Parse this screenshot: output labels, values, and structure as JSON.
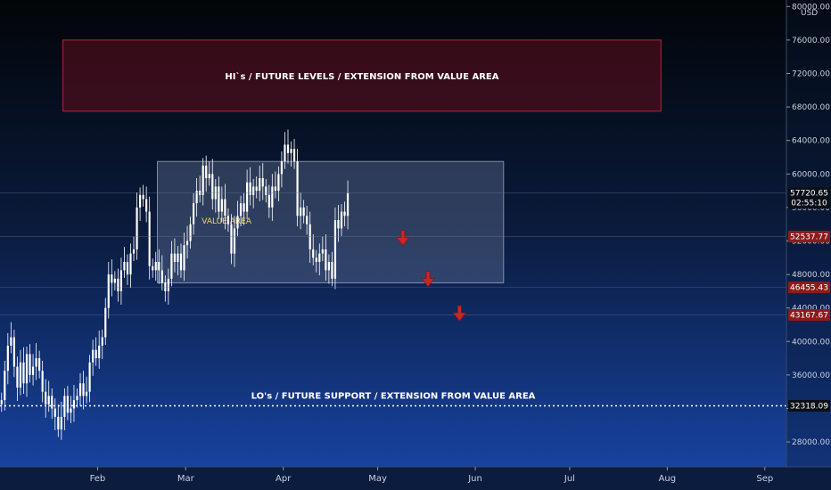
{
  "chart_data": {
    "type": "candlestick",
    "currency": "USD",
    "ylim": [
      24500,
      80000
    ],
    "yticks": [
      28000,
      32000,
      36000,
      40000,
      44000,
      48000,
      52000,
      56000,
      60000,
      64000,
      68000,
      72000,
      76000,
      80000
    ],
    "ytick_labels": [
      "28000.00",
      "32000.00",
      "36000.00",
      "40000.00",
      "44000.00",
      "48000.00",
      "52000.00",
      "56000.00",
      "60000.00",
      "64000.00",
      "68000.00",
      "72000.00",
      "76000.00",
      "80000.00"
    ],
    "x_months": [
      {
        "label": "Feb",
        "day": 31
      },
      {
        "label": "Mar",
        "day": 59
      },
      {
        "label": "Apr",
        "day": 90
      },
      {
        "label": "May",
        "day": 120
      },
      {
        "label": "Jun",
        "day": 151
      },
      {
        "label": "Jul",
        "day": 181
      },
      {
        "label": "Aug",
        "day": 212
      },
      {
        "label": "Sep",
        "day": 243
      }
    ],
    "closes": [
      33000,
      36500,
      39500,
      40500,
      37000,
      34500,
      37500,
      35000,
      38500,
      36000,
      37000,
      38000,
      36500,
      34000,
      32500,
      33500,
      32000,
      31000,
      29500,
      31000,
      33500,
      31500,
      32000,
      33000,
      33500,
      35000,
      33500,
      34000,
      37500,
      39000,
      38000,
      39500,
      40500,
      44000,
      48000,
      47000,
      47500,
      46000,
      48500,
      49500,
      48000,
      50500,
      51000,
      56000,
      57500,
      57000,
      55500,
      49000,
      48500,
      49500,
      48500,
      47000,
      46000,
      47500,
      50500,
      49500,
      50500,
      48500,
      51500,
      52000,
      54000,
      56500,
      58000,
      57500,
      61000,
      59500,
      60000,
      57000,
      58500,
      55500,
      57000,
      55000,
      54000,
      50500,
      53500,
      55000,
      56500,
      55500,
      59000,
      57500,
      58500,
      58000,
      59500,
      58500,
      57500,
      56000,
      58500,
      58000,
      60000,
      61500,
      63500,
      62500,
      63000,
      61500,
      55000,
      56000,
      55000,
      54000,
      51000,
      50000,
      49500,
      50500,
      51000,
      48500,
      49500,
      47500,
      54500,
      53500,
      55500,
      55000,
      57720
    ],
    "ranges": [
      {
        "label": "VALUE AREA",
        "low": 47000,
        "high": 61500,
        "start_day": 50,
        "end_day": 160
      }
    ],
    "zones": [
      {
        "label": "HI`s / FUTURE LEVELS / EXTENSION FROM VALUE AREA",
        "low": 67500,
        "high": 76000,
        "start_day": 20,
        "end_day": 210
      },
      {
        "label": "LO's / FUTURE SUPPORT / EXTENSION FROM VALUE AREA",
        "level": 32318.09
      }
    ],
    "price_lines": [
      {
        "value": 57720.65,
        "label": "57720.65",
        "sublabel": "02:55:10",
        "color": "#0b0f17"
      },
      {
        "value": 52537.77,
        "label": "52537.77",
        "color": "#8c1c1c"
      },
      {
        "value": 46455.43,
        "label": "46455.43",
        "color": "#8c1c1c"
      },
      {
        "value": 43167.67,
        "label": "43167.67",
        "color": "#8c1c1c"
      },
      {
        "value": 32318.09,
        "label": "32318.09",
        "color": "#0b0f17"
      }
    ],
    "arrows": [
      {
        "day": 128,
        "value": 52200
      },
      {
        "day": 136,
        "value": 47300
      },
      {
        "day": 146,
        "value": 43200
      }
    ],
    "colors": {
      "candle": "#ffffff",
      "zone_fill": "#5a0e1d",
      "zone_border": "#b0263a",
      "range_fill": "#5a6b8c",
      "range_border": "#aab6cc",
      "arrow": "#c62828",
      "range_label": "#f2d36b"
    }
  }
}
